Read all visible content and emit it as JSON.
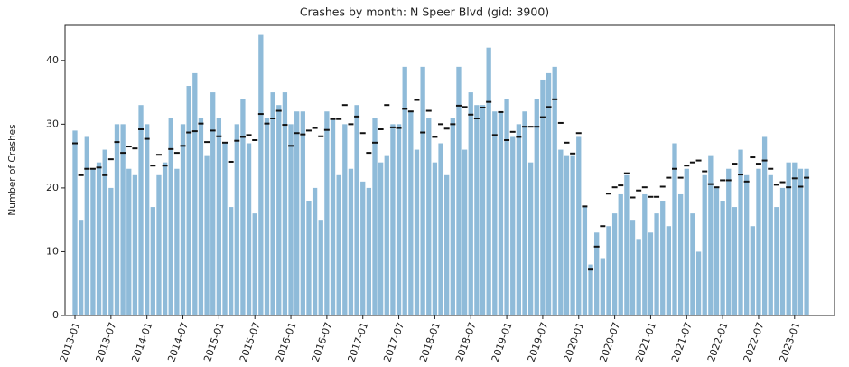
{
  "chart_data": {
    "type": "bar",
    "title": "Crashes by month: N Speer Blvd (gid: 3900)",
    "y_label": "Number of Crashes",
    "categories": [
      "2013-01",
      null,
      null,
      null,
      null,
      null,
      "2013-07",
      null,
      null,
      null,
      null,
      null,
      "2014-01",
      null,
      null,
      null,
      null,
      null,
      "2014-07",
      null,
      null,
      null,
      null,
      null,
      "2015-01",
      null,
      null,
      null,
      null,
      null,
      "2015-07",
      null,
      null,
      null,
      null,
      null,
      "2016-01",
      null,
      null,
      null,
      null,
      null,
      "2016-07",
      null,
      null,
      null,
      null,
      null,
      "2017-01",
      null,
      null,
      null,
      null,
      null,
      "2017-07",
      null,
      null,
      null,
      null,
      null,
      "2018-01",
      null,
      null,
      null,
      null,
      null,
      "2018-07",
      null,
      null,
      null,
      null,
      null,
      "2019-01",
      null,
      null,
      null,
      null,
      null,
      "2019-07",
      null,
      null,
      null,
      null,
      null,
      "2020-01",
      null,
      null,
      null,
      null,
      null,
      "2020-07",
      null,
      null,
      null,
      null,
      null,
      "2021-01",
      null,
      null,
      null,
      null,
      null,
      "2021-07",
      null,
      null,
      null,
      null,
      null,
      "2022-01",
      null,
      null,
      null,
      null,
      null,
      "2022-07",
      null,
      null,
      null,
      null,
      null,
      "2023-01",
      null,
      null
    ],
    "values": [
      29,
      15,
      28,
      23,
      24,
      26,
      20,
      30,
      30,
      23,
      22,
      33,
      30,
      17,
      22,
      24,
      31,
      23,
      30,
      36,
      38,
      31,
      25,
      35,
      31,
      27,
      17,
      30,
      34,
      27,
      16,
      44,
      31,
      35,
      33,
      35,
      30,
      32,
      32,
      18,
      20,
      15,
      32,
      31,
      22,
      30,
      23,
      33,
      21,
      20,
      31,
      24,
      25,
      30,
      30,
      39,
      32,
      26,
      39,
      31,
      24,
      27,
      22,
      31,
      39,
      26,
      35,
      33,
      33,
      42,
      32,
      32,
      34,
      28,
      30,
      32,
      24,
      34,
      37,
      38,
      39,
      26,
      25,
      25,
      28,
      17,
      8,
      13,
      9,
      14,
      16,
      19,
      22,
      15,
      12,
      19,
      13,
      16,
      18,
      14,
      27,
      19,
      23,
      16,
      10,
      22,
      25,
      20,
      18,
      23,
      17,
      26,
      22,
      14,
      23,
      28,
      22,
      17,
      20,
      24,
      24,
      23,
      23
    ],
    "marker_values": [
      27,
      22,
      23,
      23,
      23.2,
      22,
      24.5,
      27.2,
      25.5,
      26.5,
      26.2,
      29.2,
      27.7,
      23.5,
      25.2,
      23.5,
      26.1,
      25.5,
      26.6,
      28.7,
      28.9,
      30.1,
      27.2,
      29,
      28.1,
      27.1,
      24.1,
      27.4,
      28,
      28.3,
      27.5,
      31.6,
      30.1,
      30.9,
      32.1,
      29.9,
      26.6,
      28.6,
      28.4,
      29,
      29.4,
      28.1,
      29.1,
      30.8,
      30.8,
      33,
      30,
      31.2,
      28.6,
      25.5,
      27.1,
      29.2,
      33,
      29.5,
      29.4,
      32.4,
      32,
      33.8,
      28.7,
      32.1,
      28,
      30,
      29.3,
      30,
      32.9,
      32.7,
      31.5,
      30.9,
      32.6,
      33.5,
      28.3,
      31.9,
      27.5,
      28.8,
      28,
      29.6,
      29.6,
      29.6,
      31.1,
      32.7,
      33.9,
      30.2,
      27.1,
      25.4,
      28.6,
      17.1,
      7.2,
      10.8,
      14,
      19.1,
      20.1,
      20.4,
      22.3,
      18.5,
      19.6,
      20.1,
      18.6,
      18.6,
      20.2,
      21.6,
      23,
      21.6,
      23.5,
      24,
      24.3,
      22.6,
      20.6,
      20.1,
      21.2,
      21.2,
      23.8,
      22.1,
      21,
      24.8,
      23.8,
      24.3,
      23,
      20.5,
      20.9,
      20.1,
      21.5,
      20.2,
      21.6
    ],
    "color": "#8fbbd9",
    "marker_color": "#111111",
    "ylim": [
      0,
      45.5
    ],
    "yticks": [
      0,
      10,
      20,
      30,
      40
    ],
    "grid": false
  }
}
